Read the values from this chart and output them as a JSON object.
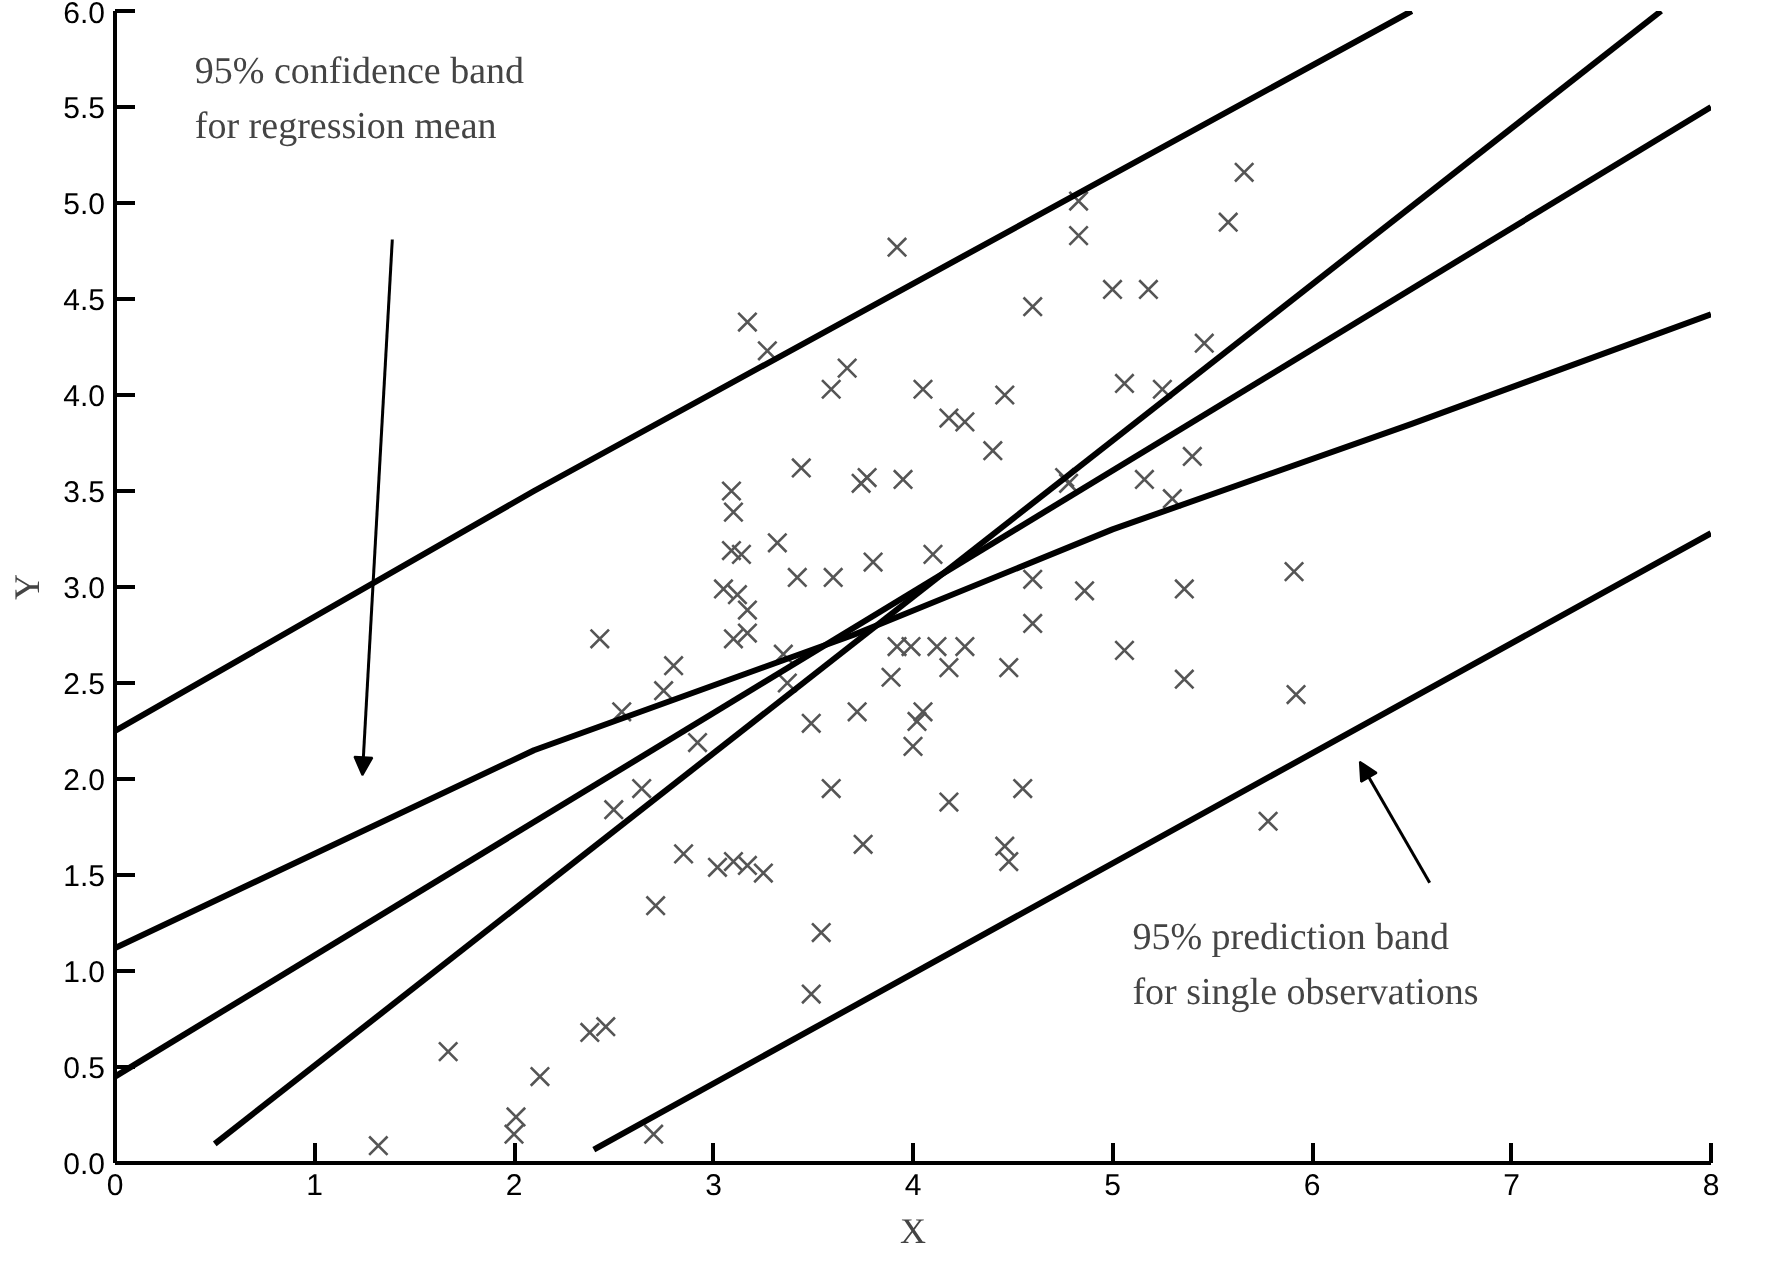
{
  "chart_data": {
    "type": "scatter",
    "xlabel": "X",
    "ylabel": "Y",
    "xlim": [
      0,
      8
    ],
    "ylim": [
      0,
      6
    ],
    "xticks": [
      0,
      1,
      2,
      3,
      4,
      5,
      6,
      7,
      8
    ],
    "yticks": [
      {
        "value": 0,
        "label": "0.0"
      },
      {
        "value": 0.5,
        "label": "0.5"
      },
      {
        "value": 1,
        "label": "1.0"
      },
      {
        "value": 1.5,
        "label": "1.5"
      },
      {
        "value": 2,
        "label": "2.0"
      },
      {
        "value": 2.5,
        "label": "2.5"
      },
      {
        "value": 3,
        "label": "3.0"
      },
      {
        "value": 3.5,
        "label": "3.5"
      },
      {
        "value": 4,
        "label": "4.0"
      },
      {
        "value": 4.5,
        "label": "4.5"
      },
      {
        "value": 5,
        "label": "5.0"
      },
      {
        "value": 5.5,
        "label": "5.5"
      },
      {
        "value": 6,
        "label": "6.0"
      }
    ],
    "grid": false,
    "series": [
      {
        "marker": "cross",
        "color": "#555555",
        "x": [
          1.32,
          2.0,
          2.01,
          1.67,
          2.13,
          2.38,
          2.46,
          2.7,
          2.71,
          2.43,
          2.54,
          2.5,
          2.64,
          2.75,
          2.8,
          2.92,
          2.85,
          3.02,
          3.1,
          3.17,
          3.25,
          3.09,
          3.1,
          3.09,
          3.14,
          3.05,
          3.12,
          3.17,
          3.1,
          3.17,
          3.17,
          3.27,
          3.32,
          3.42,
          3.37,
          3.35,
          3.44,
          3.49,
          3.59,
          3.75,
          3.54,
          3.49,
          3.59,
          3.67,
          3.6,
          3.74,
          3.77,
          3.95,
          3.8,
          3.72,
          3.92,
          4.05,
          3.89,
          3.99,
          4.0,
          4.05,
          4.83,
          4.83,
          5.66,
          4.6,
          5.0,
          5.18,
          5.46,
          4.18,
          4.26,
          4.4,
          4.46,
          5.06,
          5.25,
          4.76,
          4.78,
          5.16,
          5.3,
          5.4,
          4.1,
          4.6,
          4.86,
          5.36,
          5.91,
          3.92,
          4.12,
          4.18,
          4.26,
          4.6,
          4.48,
          5.06,
          5.36,
          5.92,
          4.02,
          4.18,
          4.55,
          4.46,
          4.48,
          5.78,
          5.58
        ],
        "values": [
          0.09,
          0.15,
          0.24,
          0.58,
          0.45,
          0.68,
          0.71,
          0.15,
          1.34,
          2.73,
          2.35,
          1.84,
          1.95,
          2.46,
          2.59,
          2.19,
          1.61,
          1.54,
          1.57,
          1.55,
          1.51,
          3.5,
          3.39,
          3.19,
          3.17,
          2.99,
          2.96,
          2.88,
          2.73,
          2.76,
          4.38,
          4.23,
          3.23,
          3.05,
          2.5,
          2.65,
          3.62,
          2.29,
          1.95,
          1.66,
          1.2,
          0.88,
          4.03,
          4.14,
          3.05,
          3.54,
          3.57,
          3.56,
          3.13,
          2.35,
          4.77,
          4.03,
          2.53,
          2.69,
          2.17,
          2.35,
          5.01,
          4.83,
          5.16,
          4.46,
          4.55,
          4.55,
          4.27,
          3.88,
          3.86,
          3.71,
          4.0,
          4.06,
          4.03,
          3.57,
          3.54,
          3.56,
          3.46,
          3.68,
          3.17,
          3.04,
          2.98,
          2.99,
          3.08,
          2.69,
          2.69,
          2.58,
          2.69,
          2.81,
          2.58,
          2.67,
          2.52,
          2.44,
          2.3,
          1.88,
          1.95,
          1.65,
          1.57,
          1.78,
          4.9
        ]
      },
      {
        "type": "line",
        "color": "#000000",
        "x": [
          0,
          2.1,
          6.5
        ],
        "values": [
          2.25,
          3.5,
          6.0
        ]
      },
      {
        "type": "line",
        "color": "#000000",
        "x": [
          0,
          2.1,
          3.7,
          5,
          6.5,
          8
        ],
        "values": [
          1.12,
          2.15,
          2.75,
          3.3,
          3.85,
          4.42
        ]
      },
      {
        "type": "line",
        "color": "#000000",
        "x": [
          0,
          8
        ],
        "values": [
          0.45,
          5.5
        ]
      },
      {
        "type": "line",
        "color": "#000000",
        "x": [
          0.5,
          7.75
        ],
        "values": [
          0.1,
          6.0
        ]
      },
      {
        "type": "line",
        "color": "#000000",
        "x": [
          2.4,
          8
        ],
        "values": [
          0.07,
          3.28
        ]
      }
    ],
    "annotations": [
      "95% confidence band\nfor regression mean",
      "95% prediction band\nfor single observations"
    ]
  }
}
